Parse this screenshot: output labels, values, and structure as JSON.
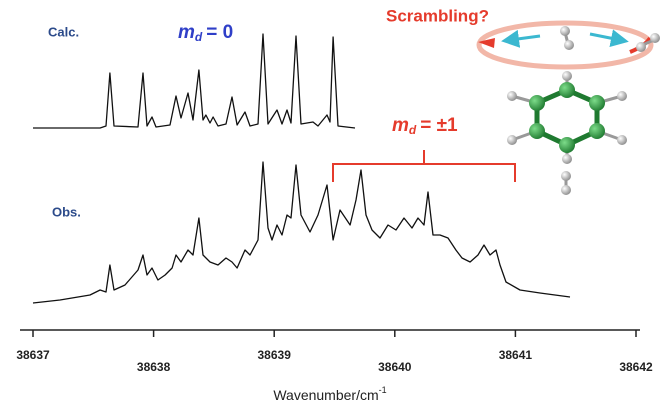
{
  "chart_data": {
    "type": "line",
    "xlabel": [
      "Wavenumber/cm",
      "-1"
    ],
    "xlim": [
      38637,
      38642
    ],
    "xticks": [
      38637,
      38638,
      38639,
      38640,
      38641,
      38642
    ],
    "ylim": [
      0,
      300
    ],
    "annotations": {
      "calc": "Calc.",
      "obs": "Obs.",
      "scrambling": "Scrambling?",
      "md_zero": [
        "m",
        "d",
        "= 0"
      ],
      "md_pm1": [
        "m",
        "d",
        "= ±1"
      ]
    },
    "series": [
      {
        "name": "Calc.",
        "color": "#111111",
        "x": [
          38637.0,
          38637.556,
          38637.605,
          38637.638,
          38637.672,
          38637.871,
          38637.912,
          38637.945,
          38637.987,
          38638.02,
          38638.136,
          38638.186,
          38638.227,
          38638.285,
          38638.327,
          38638.376,
          38638.41,
          38638.434,
          38638.468,
          38638.493,
          38638.534,
          38638.6,
          38638.65,
          38638.692,
          38638.758,
          38638.799,
          38638.866,
          38638.907,
          38638.949,
          38639.023,
          38639.065,
          38639.106,
          38639.139,
          38639.181,
          38639.222,
          38639.322,
          38639.363,
          38639.438,
          38639.463,
          38639.488,
          38639.529,
          38639.67
        ],
        "values": [
          202,
          202,
          204,
          257,
          204,
          203,
          257,
          204,
          213,
          203,
          205,
          234,
          212,
          237,
          210,
          260,
          210,
          215,
          207,
          213,
          204,
          206,
          233,
          205,
          218,
          204,
          206,
          296,
          206,
          220,
          206,
          220,
          207,
          294,
          206,
          208,
          204,
          215,
          208,
          293,
          204,
          202
        ]
      },
      {
        "name": "Obs.",
        "color": "#111111",
        "x": [
          38637.0,
          38637.224,
          38637.473,
          38637.556,
          38637.605,
          38637.638,
          38637.672,
          38637.763,
          38637.871,
          38637.912,
          38637.945,
          38637.987,
          38638.036,
          38638.095,
          38638.153,
          38638.186,
          38638.227,
          38638.285,
          38638.327,
          38638.376,
          38638.41,
          38638.468,
          38638.534,
          38638.6,
          38638.65,
          38638.692,
          38638.758,
          38638.799,
          38638.866,
          38638.907,
          38638.949,
          38638.982,
          38639.023,
          38639.065,
          38639.106,
          38639.139,
          38639.181,
          38639.222,
          38639.297,
          38639.363,
          38639.438,
          38639.488,
          38639.546,
          38639.629,
          38639.678,
          38639.72,
          38639.761,
          38639.811,
          38639.877,
          38639.944,
          38640.01,
          38640.076,
          38640.143,
          38640.192,
          38640.242,
          38640.275,
          38640.317,
          38640.375,
          38640.441,
          38640.507,
          38640.557,
          38640.624,
          38640.69,
          38640.74,
          38640.789,
          38640.839,
          38640.872,
          38640.922,
          38641.038,
          38641.204,
          38641.453
        ],
        "values": [
          27,
          30,
          35,
          40,
          38,
          65,
          40,
          45,
          60,
          75,
          55,
          62,
          50,
          55,
          62,
          75,
          68,
          80,
          75,
          112,
          75,
          68,
          65,
          72,
          68,
          62,
          80,
          75,
          90,
          168,
          102,
          90,
          105,
          95,
          115,
          112,
          165,
          115,
          98,
          115,
          145,
          90,
          120,
          105,
          130,
          160,
          115,
          100,
          92,
          105,
          100,
          112,
          102,
          112,
          105,
          138,
          95,
          95,
          92,
          80,
          72,
          68,
          75,
          85,
          75,
          80,
          65,
          48,
          40,
          37,
          33
        ]
      }
    ]
  }
}
